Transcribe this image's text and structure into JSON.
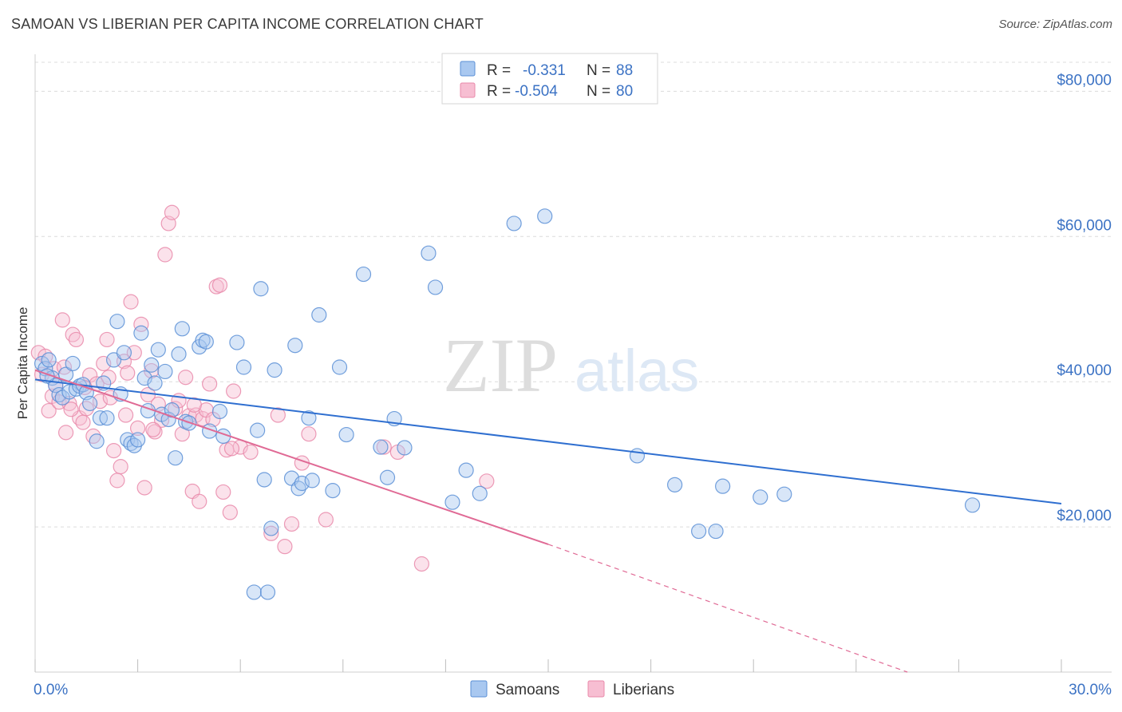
{
  "title": "SAMOAN VS LIBERIAN PER CAPITA INCOME CORRELATION CHART",
  "source": "Source: ZipAtlas.com",
  "watermark": {
    "zip": "ZIP",
    "atlas": "atlas"
  },
  "colors": {
    "samoan_fill": "#a9c8f0",
    "samoan_stroke": "#5b8fd6",
    "samoan_line": "#2f6fd0",
    "liberian_fill": "#f7bed2",
    "liberian_stroke": "#e989aa",
    "liberian_line": "#e06a95",
    "tick_label": "#3b72c4",
    "grid": "#dcdcdc"
  },
  "legend": {
    "rows": [
      {
        "r_label": "R =",
        "r_value": "-0.331",
        "n_label": "N =",
        "n_value": "88"
      },
      {
        "r_label": "R =",
        "r_value": "-0.504",
        "n_label": "N =",
        "n_value": "80"
      }
    ],
    "bottom": [
      "Samoans",
      "Liberians"
    ]
  },
  "chart_data": {
    "type": "scatter",
    "title": "SAMOAN VS LIBERIAN PER CAPITA INCOME CORRELATION CHART",
    "xlabel": "",
    "ylabel": "Per Capita Income",
    "xlim": [
      0,
      30
    ],
    "ylim": [
      0,
      84000
    ],
    "x_tick_labels": [
      "0.0%",
      "30.0%"
    ],
    "y_ticks": [
      20000,
      40000,
      60000,
      80000
    ],
    "y_tick_labels": [
      "$20,000",
      "$40,000",
      "$60,000",
      "$80,000"
    ],
    "grid": true,
    "legend_position": "top-center",
    "series": [
      {
        "name": "Samoans",
        "r": -0.331,
        "n": 88,
        "trend": {
          "x": [
            0,
            30
          ],
          "y": [
            40300,
            23200
          ]
        },
        "points": [
          [
            0.2,
            42500
          ],
          [
            0.3,
            41800
          ],
          [
            0.4,
            43000
          ],
          [
            0.5,
            40500
          ],
          [
            0.6,
            39500
          ],
          [
            0.7,
            38200
          ],
          [
            0.8,
            37800
          ],
          [
            0.9,
            41000
          ],
          [
            1.0,
            38600
          ],
          [
            1.1,
            42500
          ],
          [
            1.2,
            39000
          ],
          [
            1.3,
            39400
          ],
          [
            1.4,
            39600
          ],
          [
            1.5,
            38500
          ],
          [
            1.6,
            37000
          ],
          [
            1.8,
            31800
          ],
          [
            1.9,
            35000
          ],
          [
            2.0,
            39800
          ],
          [
            2.1,
            35000
          ],
          [
            2.3,
            43000
          ],
          [
            2.4,
            48300
          ],
          [
            2.5,
            38300
          ],
          [
            2.6,
            44000
          ],
          [
            2.7,
            32000
          ],
          [
            2.8,
            31500
          ],
          [
            2.9,
            31200
          ],
          [
            3.0,
            32000
          ],
          [
            3.1,
            46700
          ],
          [
            3.2,
            40500
          ],
          [
            3.3,
            36000
          ],
          [
            3.4,
            42300
          ],
          [
            3.5,
            39800
          ],
          [
            3.6,
            44400
          ],
          [
            3.7,
            35500
          ],
          [
            3.8,
            41400
          ],
          [
            3.9,
            34800
          ],
          [
            4.0,
            36100
          ],
          [
            4.1,
            29500
          ],
          [
            4.2,
            43800
          ],
          [
            4.3,
            47300
          ],
          [
            4.4,
            34500
          ],
          [
            4.5,
            34300
          ],
          [
            4.8,
            44800
          ],
          [
            4.9,
            45700
          ],
          [
            5.0,
            45500
          ],
          [
            5.1,
            33200
          ],
          [
            5.4,
            35900
          ],
          [
            5.5,
            32500
          ],
          [
            5.9,
            45400
          ],
          [
            6.1,
            42000
          ],
          [
            6.4,
            11000
          ],
          [
            6.5,
            33300
          ],
          [
            6.6,
            52800
          ],
          [
            6.7,
            26500
          ],
          [
            6.8,
            11000
          ],
          [
            6.9,
            19800
          ],
          [
            7.0,
            41600
          ],
          [
            7.5,
            26700
          ],
          [
            7.6,
            45000
          ],
          [
            7.7,
            25300
          ],
          [
            7.8,
            26000
          ],
          [
            8.0,
            35000
          ],
          [
            8.1,
            26400
          ],
          [
            8.3,
            49200
          ],
          [
            8.7,
            25000
          ],
          [
            8.9,
            42000
          ],
          [
            9.1,
            32700
          ],
          [
            9.6,
            54800
          ],
          [
            10.1,
            31000
          ],
          [
            10.3,
            26800
          ],
          [
            10.5,
            34900
          ],
          [
            10.8,
            30900
          ],
          [
            11.5,
            57700
          ],
          [
            11.7,
            53000
          ],
          [
            12.2,
            23400
          ],
          [
            12.6,
            27800
          ],
          [
            13.0,
            24600
          ],
          [
            14.0,
            61800
          ],
          [
            14.9,
            62800
          ],
          [
            17.6,
            29800
          ],
          [
            18.7,
            25800
          ],
          [
            19.4,
            19400
          ],
          [
            19.9,
            19400
          ],
          [
            20.1,
            25600
          ],
          [
            21.2,
            24100
          ],
          [
            21.9,
            24500
          ],
          [
            27.4,
            23000
          ],
          [
            0.35,
            40800
          ]
        ]
      },
      {
        "name": "Liberians",
        "r": -0.504,
        "n": 80,
        "trend": {
          "x": [
            0,
            15.0
          ],
          "y": [
            41600,
            17600
          ]
        },
        "dashed_extension": {
          "x": [
            15.0,
            25.5
          ],
          "y": [
            17600,
            0
          ]
        },
        "points": [
          [
            0.1,
            44000
          ],
          [
            0.2,
            41000
          ],
          [
            0.3,
            43500
          ],
          [
            0.4,
            36000
          ],
          [
            0.5,
            38000
          ],
          [
            0.6,
            39500
          ],
          [
            0.7,
            37200
          ],
          [
            0.8,
            48500
          ],
          [
            0.9,
            33000
          ],
          [
            1.0,
            37000
          ],
          [
            1.1,
            46500
          ],
          [
            1.2,
            45800
          ],
          [
            1.3,
            35000
          ],
          [
            1.4,
            34400
          ],
          [
            1.5,
            36300
          ],
          [
            1.6,
            40900
          ],
          [
            1.7,
            32500
          ],
          [
            1.8,
            39700
          ],
          [
            1.9,
            37300
          ],
          [
            2.0,
            42500
          ],
          [
            2.1,
            45800
          ],
          [
            2.2,
            37800
          ],
          [
            2.3,
            30500
          ],
          [
            2.4,
            26400
          ],
          [
            2.5,
            28300
          ],
          [
            2.6,
            42800
          ],
          [
            2.7,
            41200
          ],
          [
            2.8,
            51000
          ],
          [
            2.9,
            44000
          ],
          [
            3.0,
            33600
          ],
          [
            3.1,
            47900
          ],
          [
            3.2,
            25400
          ],
          [
            3.3,
            38200
          ],
          [
            3.4,
            41500
          ],
          [
            3.5,
            33100
          ],
          [
            3.6,
            36900
          ],
          [
            3.7,
            34700
          ],
          [
            3.8,
            57500
          ],
          [
            3.9,
            61800
          ],
          [
            4.0,
            63300
          ],
          [
            4.1,
            36300
          ],
          [
            4.2,
            37400
          ],
          [
            4.3,
            32800
          ],
          [
            4.4,
            40600
          ],
          [
            4.5,
            35300
          ],
          [
            4.6,
            24900
          ],
          [
            4.7,
            35400
          ],
          [
            4.8,
            23500
          ],
          [
            4.9,
            34900
          ],
          [
            5.0,
            36100
          ],
          [
            5.1,
            39700
          ],
          [
            5.2,
            34800
          ],
          [
            5.3,
            53100
          ],
          [
            5.4,
            53300
          ],
          [
            5.5,
            24800
          ],
          [
            5.6,
            30600
          ],
          [
            5.7,
            22000
          ],
          [
            5.8,
            38700
          ],
          [
            6.0,
            31000
          ],
          [
            6.3,
            30300
          ],
          [
            6.9,
            19100
          ],
          [
            7.1,
            35400
          ],
          [
            7.3,
            17300
          ],
          [
            7.5,
            20400
          ],
          [
            7.8,
            28800
          ],
          [
            8.0,
            32800
          ],
          [
            8.5,
            21000
          ],
          [
            10.2,
            31000
          ],
          [
            10.6,
            30300
          ],
          [
            11.3,
            14900
          ],
          [
            13.2,
            26300
          ],
          [
            1.05,
            36200
          ],
          [
            2.15,
            40600
          ],
          [
            3.45,
            33400
          ],
          [
            4.65,
            36800
          ],
          [
            1.45,
            39200
          ],
          [
            2.65,
            35400
          ],
          [
            0.55,
            41800
          ],
          [
            5.75,
            30800
          ],
          [
            0.85,
            42000
          ]
        ]
      }
    ]
  }
}
